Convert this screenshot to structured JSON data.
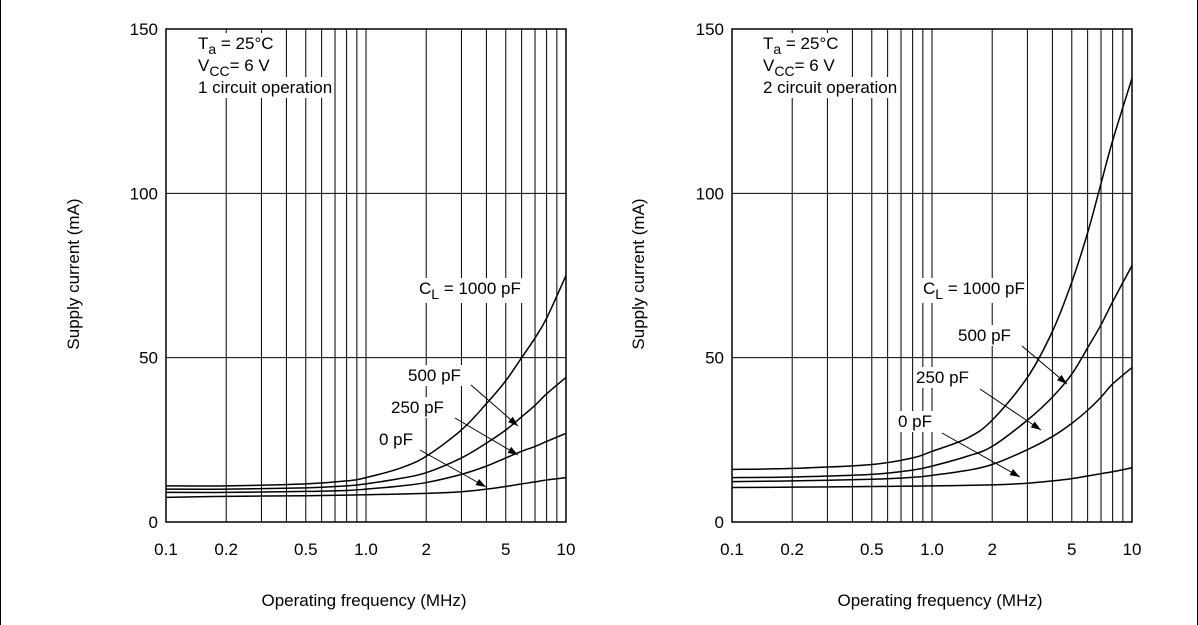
{
  "chart_data": [
    {
      "type": "line",
      "annotation_lines": [
        {
          "main": "T",
          "sub": "a",
          "rest": " = 25°C"
        },
        {
          "main": "V",
          "sub": "CC",
          "rest": "= 6 V"
        },
        {
          "main": "1 circuit operation",
          "sub": "",
          "rest": ""
        }
      ],
      "xlabel": "Operating frequency (MHz)",
      "ylabel": "Supply current (mA)",
      "x_scale": "log",
      "xlim": [
        0.1,
        10
      ],
      "ylim": [
        0,
        150
      ],
      "x_ticks": [
        {
          "value": 0.1,
          "label": "0.1"
        },
        {
          "value": 0.2,
          "label": "0.2"
        },
        {
          "value": 0.5,
          "label": "0.5"
        },
        {
          "value": 1,
          "label": "1.0"
        },
        {
          "value": 2,
          "label": "2"
        },
        {
          "value": 5,
          "label": "5"
        },
        {
          "value": 10,
          "label": "10"
        }
      ],
      "y_ticks": [
        {
          "value": 0,
          "label": "0"
        },
        {
          "value": 50,
          "label": "50"
        },
        {
          "value": 100,
          "label": "100"
        },
        {
          "value": 150,
          "label": "150"
        }
      ],
      "grid": true,
      "series": [
        {
          "name": "C L = 1000 pF",
          "label_main": "C",
          "label_sub": "L",
          "label_rest": " = 1000 pF",
          "x": [
            0.1,
            0.2,
            0.5,
            0.8,
            1,
            1.5,
            2,
            3,
            4,
            5,
            6,
            7,
            8,
            10
          ],
          "y": [
            11,
            11,
            11.6,
            12.5,
            13.5,
            16.5,
            20,
            28,
            36,
            43,
            50,
            56,
            62,
            75
          ]
        },
        {
          "name": "500 pF",
          "label_main": "500 pF",
          "label_sub": "",
          "label_rest": "",
          "x": [
            0.1,
            0.2,
            0.5,
            0.8,
            1,
            1.5,
            2,
            3,
            4,
            5,
            6,
            7,
            8,
            10
          ],
          "y": [
            10,
            10,
            10.4,
            11,
            11.6,
            13.3,
            15,
            19.5,
            24,
            28,
            32,
            35.5,
            39,
            44
          ]
        },
        {
          "name": "250 pF",
          "label_main": "250 pF",
          "label_sub": "",
          "label_rest": "",
          "x": [
            0.1,
            0.2,
            0.5,
            0.8,
            1,
            1.5,
            2,
            3,
            4,
            5,
            6,
            7,
            8,
            10
          ],
          "y": [
            9,
            9,
            9.3,
            9.6,
            10,
            11,
            12,
            14.5,
            17,
            19.5,
            21.5,
            23,
            24.5,
            27
          ]
        },
        {
          "name": "0 pF",
          "label_main": "0 pF",
          "label_sub": "",
          "label_rest": "",
          "x": [
            0.1,
            0.2,
            0.5,
            1,
            2,
            3,
            4,
            5,
            6,
            7,
            8,
            10
          ],
          "y": [
            7.5,
            7.8,
            8,
            8.3,
            8.7,
            9.2,
            10,
            10.8,
            11.6,
            12.2,
            12.8,
            13.5
          ]
        }
      ]
    },
    {
      "type": "line",
      "annotation_lines": [
        {
          "main": "T",
          "sub": "a",
          "rest": " = 25°C"
        },
        {
          "main": "V",
          "sub": "CC",
          "rest": "= 6 V"
        },
        {
          "main": "2 circuit operation",
          "sub": "",
          "rest": ""
        }
      ],
      "xlabel": "Operating frequency (MHz)",
      "ylabel": "Supply current (mA)",
      "x_scale": "log",
      "xlim": [
        0.1,
        10
      ],
      "ylim": [
        0,
        150
      ],
      "x_ticks": [
        {
          "value": 0.1,
          "label": "0.1"
        },
        {
          "value": 0.2,
          "label": "0.2"
        },
        {
          "value": 0.5,
          "label": "0.5"
        },
        {
          "value": 1,
          "label": "1.0"
        },
        {
          "value": 2,
          "label": "2"
        },
        {
          "value": 5,
          "label": "5"
        },
        {
          "value": 10,
          "label": "10"
        }
      ],
      "y_ticks": [
        {
          "value": 0,
          "label": "0"
        },
        {
          "value": 50,
          "label": "50"
        },
        {
          "value": 100,
          "label": "100"
        },
        {
          "value": 150,
          "label": "150"
        }
      ],
      "grid": true,
      "series": [
        {
          "name": "C L = 1000 pF",
          "label_main": "C",
          "label_sub": "L",
          "label_rest": " = 1000 pF",
          "x": [
            0.1,
            0.2,
            0.5,
            0.8,
            1,
            1.5,
            2,
            3,
            4,
            5,
            6,
            7,
            8,
            10
          ],
          "y": [
            16,
            16.3,
            17.5,
            19.5,
            21.5,
            25.5,
            31,
            44,
            58,
            73,
            88,
            103,
            116,
            135
          ]
        },
        {
          "name": "500 pF",
          "label_main": "500 pF",
          "label_sub": "",
          "label_rest": "",
          "x": [
            0.1,
            0.2,
            0.5,
            0.8,
            1,
            1.5,
            2,
            3,
            4,
            5,
            6,
            7,
            8,
            10
          ],
          "y": [
            13.5,
            13.7,
            14.5,
            15.8,
            17,
            20,
            23,
            31,
            38,
            45,
            53,
            60,
            67,
            78
          ]
        },
        {
          "name": "250 pF",
          "label_main": "250 pF",
          "label_sub": "",
          "label_rest": "",
          "x": [
            0.1,
            0.2,
            0.5,
            0.8,
            1,
            1.5,
            2,
            3,
            4,
            5,
            6,
            7,
            8,
            10
          ],
          "y": [
            12.3,
            12.5,
            13,
            13.6,
            14.2,
            15.7,
            17.5,
            22,
            26,
            30,
            34,
            38,
            42,
            47
          ]
        },
        {
          "name": "0 pF",
          "label_main": "0 pF",
          "label_sub": "",
          "label_rest": "",
          "x": [
            0.1,
            0.2,
            0.5,
            1,
            2,
            3,
            4,
            5,
            6,
            7,
            8,
            10
          ],
          "y": [
            10.5,
            10.6,
            10.8,
            11,
            11.3,
            11.8,
            12.5,
            13.2,
            14,
            14.7,
            15.3,
            16.5
          ]
        }
      ]
    }
  ]
}
